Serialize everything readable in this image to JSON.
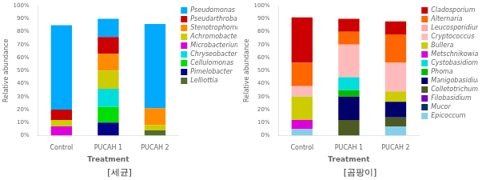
{
  "chart_data": [
    {
      "type": "bar",
      "stacked": true,
      "grid": false,
      "legend": "right",
      "xlabel": "Treatment",
      "ylabel": "Relative abundance",
      "annotations": [
        "[세균]"
      ],
      "categories": [
        "Control",
        "PUCAH 1",
        "PUCAH 2"
      ],
      "ylim": [
        0,
        100
      ],
      "yticks": [
        {
          "value": 0,
          "label": "0%"
        },
        {
          "value": 10,
          "label": "10%"
        },
        {
          "value": 20,
          "label": "20%"
        },
        {
          "value": 30,
          "label": "30%"
        },
        {
          "value": 40,
          "label": "40%"
        },
        {
          "value": 50,
          "label": "50%"
        },
        {
          "value": 60,
          "label": "60%"
        },
        {
          "value": 70,
          "label": "70%"
        },
        {
          "value": 80,
          "label": "80%"
        },
        {
          "value": 90,
          "label": "90%"
        },
        {
          "value": 100,
          "label": "100%"
        }
      ],
      "series": [
        {
          "name": "Lelliottia",
          "color": "#556b2f",
          "values": [
            0,
            0,
            4
          ]
        },
        {
          "name": "Pimelobacter",
          "color": "#00008b",
          "values": [
            0,
            10,
            0
          ]
        },
        {
          "name": "Cellulomonas",
          "color": "#00dd00",
          "values": [
            0,
            12,
            0
          ]
        },
        {
          "name": "Chryseobacterium",
          "color": "#00dddd",
          "values": [
            0,
            14,
            0
          ]
        },
        {
          "name": "Microbacterium",
          "color": "#dd00dd",
          "values": [
            7,
            0,
            0
          ]
        },
        {
          "name": "Achromobacter",
          "color": "#cccc00",
          "values": [
            5,
            14,
            4
          ]
        },
        {
          "name": "Stenotrophomonas",
          "color": "#ff8c00",
          "values": [
            0,
            13,
            13
          ]
        },
        {
          "name": "Pseudarthrobacter",
          "color": "#cc0000",
          "values": [
            8,
            13,
            0
          ]
        },
        {
          "name": "Pseudomonas",
          "color": "#00aaff",
          "values": [
            65,
            14,
            65
          ]
        }
      ]
    },
    {
      "type": "bar",
      "stacked": true,
      "grid": false,
      "legend": "right",
      "xlabel": "Treatment",
      "ylabel": "Relative abundance",
      "annotations": [
        "[곰팡이]"
      ],
      "categories": [
        "Control",
        "PUCAH 1",
        "PUCAH 2"
      ],
      "ylim": [
        0,
        100
      ],
      "yticks": [
        {
          "value": 0,
          "label": "0%"
        },
        {
          "value": 10,
          "label": "10%"
        },
        {
          "value": 20,
          "label": "20%"
        },
        {
          "value": 30,
          "label": "30%"
        },
        {
          "value": 40,
          "label": "40%"
        },
        {
          "value": 50,
          "label": "50%"
        },
        {
          "value": 60,
          "label": "60%"
        },
        {
          "value": 70,
          "label": "70%"
        },
        {
          "value": 80,
          "label": "80%"
        },
        {
          "value": 90,
          "label": "90%"
        },
        {
          "value": 100,
          "label": "100%"
        }
      ],
      "series": [
        {
          "name": "Epicoccum",
          "color": "#87ceeb",
          "values": [
            5,
            0,
            7
          ]
        },
        {
          "name": "Mucor",
          "color": "#003366",
          "values": [
            0,
            0,
            0
          ]
        },
        {
          "name": "Filobasidium",
          "color": "#7700bb",
          "values": [
            0,
            0,
            0
          ]
        },
        {
          "name": "Colletotrichum",
          "color": "#4d5a21",
          "values": [
            0,
            12,
            7
          ]
        },
        {
          "name": "Manigobasidium",
          "color": "#00006b",
          "values": [
            0,
            18,
            12
          ]
        },
        {
          "name": "Phoma",
          "color": "#00bb00",
          "values": [
            0,
            5,
            0
          ]
        },
        {
          "name": "Cystobasidiomyceta",
          "color": "#00dddd",
          "values": [
            0,
            10,
            0
          ]
        },
        {
          "name": "Metschnikowia",
          "color": "#dd00dd",
          "values": [
            7,
            0,
            0
          ]
        },
        {
          "name": "Bullera",
          "color": "#cccc00",
          "values": [
            18,
            0,
            8
          ]
        },
        {
          "name": "Cryptococcus",
          "color": "#ffbbbb",
          "values": [
            8,
            25,
            22
          ]
        },
        {
          "name": "Leucosporidium",
          "color": "#ffaaaa",
          "values": [
            0,
            0,
            0
          ]
        },
        {
          "name": "Alternaria",
          "color": "#ff6600",
          "values": [
            18,
            10,
            22
          ]
        },
        {
          "name": "Cladosporium",
          "color": "#cc0000",
          "values": [
            35,
            10,
            10
          ]
        }
      ]
    }
  ]
}
